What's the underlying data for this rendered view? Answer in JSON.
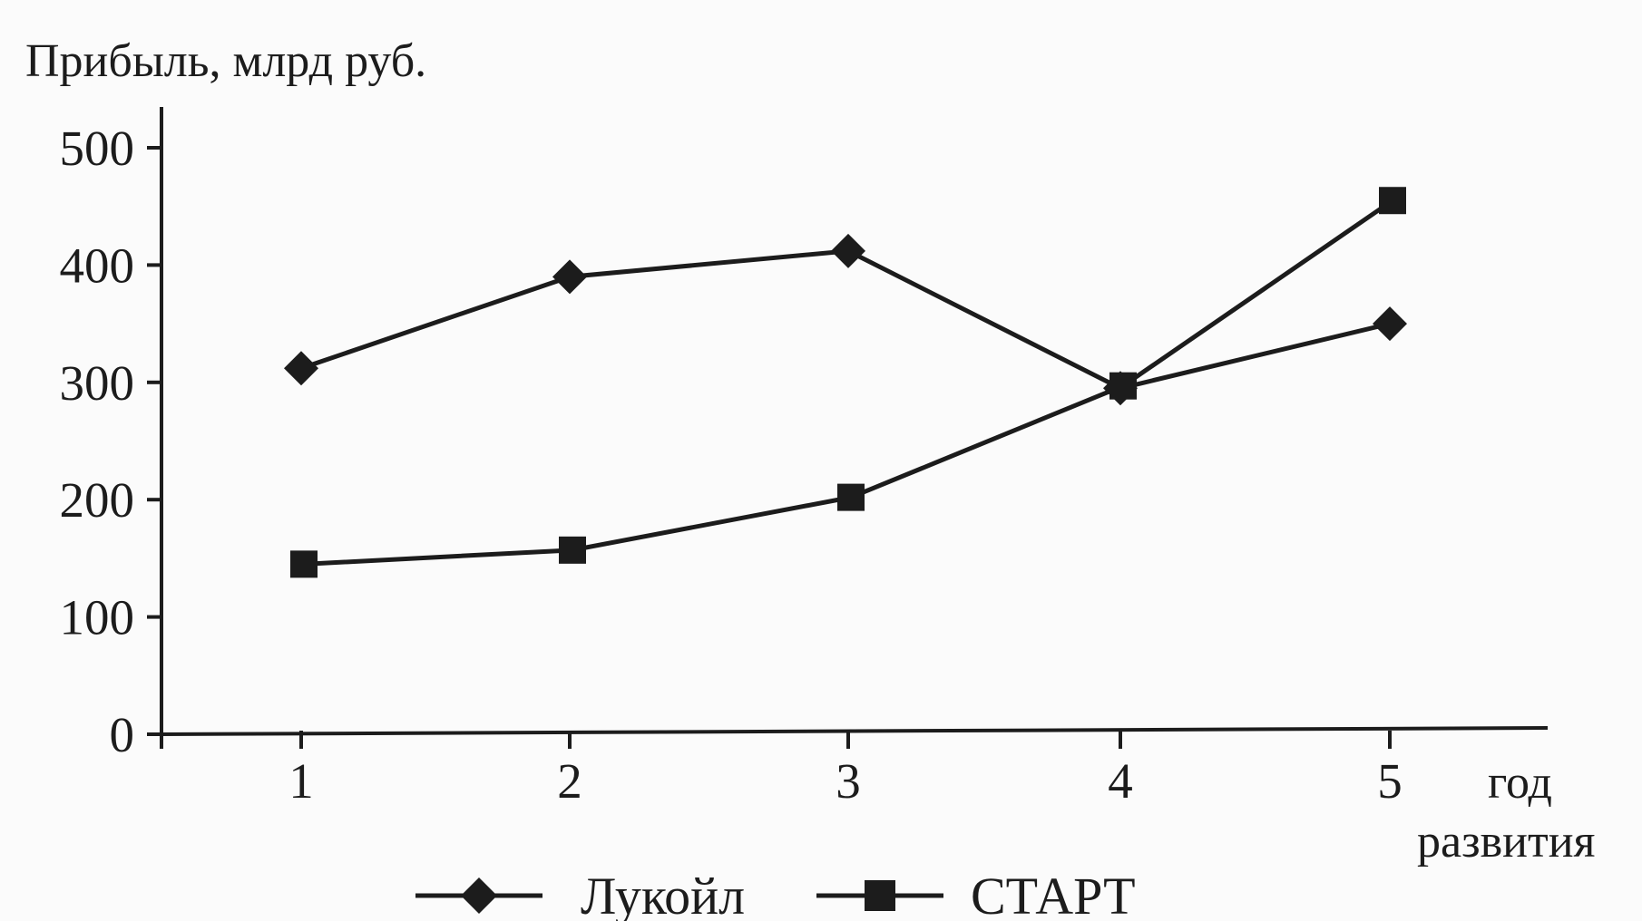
{
  "chart_data": {
    "type": "line",
    "title": "",
    "ylabel": "Прибыль, млрд руб.",
    "xlabel": "год развития",
    "xlabel_lines": [
      "год",
      "развития"
    ],
    "categories": [
      "1",
      "2",
      "3",
      "4",
      "5"
    ],
    "ylim": [
      0,
      500
    ],
    "yticks": [
      "0",
      "100",
      "200",
      "300",
      "400",
      "500"
    ],
    "grid": false,
    "legend_position": "bottom",
    "series": [
      {
        "name": "Лукойл",
        "marker": "diamond",
        "values": [
          312,
          390,
          412,
          295,
          350
        ]
      },
      {
        "name": "СТАРТ",
        "marker": "square",
        "values": [
          145,
          157,
          202,
          297,
          455
        ]
      }
    ]
  }
}
